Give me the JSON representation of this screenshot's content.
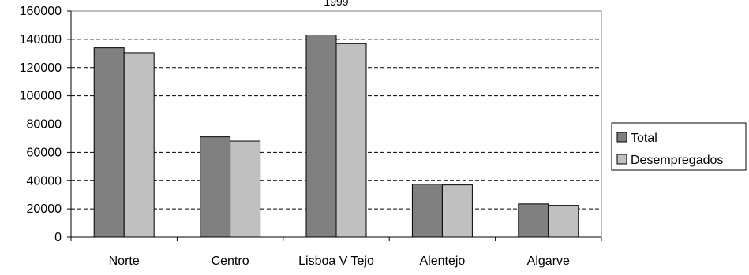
{
  "chart_data": {
    "type": "bar",
    "title": "1999",
    "categories": [
      "Norte",
      "Centro",
      "Lisboa V Tejo",
      "Alentejo",
      "Algarve"
    ],
    "series": [
      {
        "name": "Total",
        "values": [
          134000,
          71000,
          143000,
          37500,
          23500
        ],
        "color": "#808080"
      },
      {
        "name": "Desempregados",
        "values": [
          130500,
          68000,
          137000,
          37000,
          22500
        ],
        "color": "#c0c0c0"
      }
    ],
    "ylim": [
      0,
      160000
    ],
    "yticks": [
      0,
      20000,
      40000,
      60000,
      80000,
      100000,
      120000,
      140000,
      160000
    ],
    "grid": "horizontal dashed",
    "legend_position": "right"
  }
}
